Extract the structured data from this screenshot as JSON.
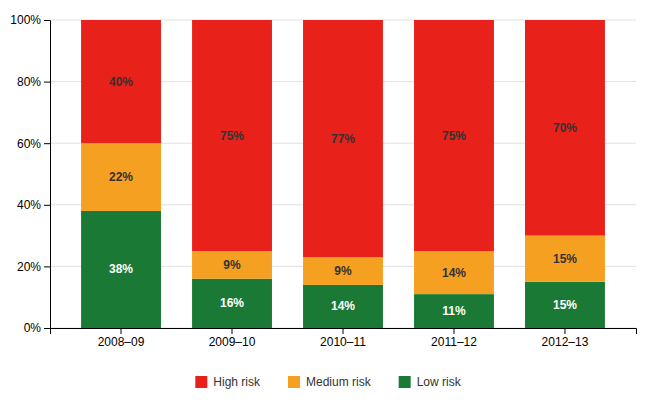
{
  "chart_data": {
    "type": "bar",
    "stacked": true,
    "grid": true,
    "legend": "bottom",
    "data_labels": true,
    "categories": [
      "2008–09",
      "2009–10",
      "2010–11",
      "2011–12",
      "2012–13"
    ],
    "series": [
      {
        "name": "Low risk",
        "color": "#1a7a35",
        "values": [
          38,
          16,
          14,
          11,
          15
        ],
        "value_labels": [
          "38%",
          "16%",
          "14%",
          "11%",
          "15%"
        ]
      },
      {
        "name": "Medium risk",
        "color": "#f5a020",
        "values": [
          22,
          9,
          9,
          14,
          15
        ],
        "value_labels": [
          "22%",
          "9%",
          "9%",
          "14%",
          "15%"
        ]
      },
      {
        "name": "High risk",
        "color": "#e8211a",
        "values": [
          40,
          75,
          77,
          75,
          70
        ],
        "value_labels": [
          "40%",
          "75%",
          "77%",
          "75%",
          "70%"
        ]
      }
    ],
    "ylim": [
      0,
      100
    ],
    "yticks": [
      {
        "value": 0,
        "label": "0%"
      },
      {
        "value": 20,
        "label": "20%"
      },
      {
        "value": 40,
        "label": "40%"
      },
      {
        "value": 60,
        "label": "60%"
      },
      {
        "value": 80,
        "label": "80%"
      },
      {
        "value": 100,
        "label": "100%"
      }
    ]
  }
}
